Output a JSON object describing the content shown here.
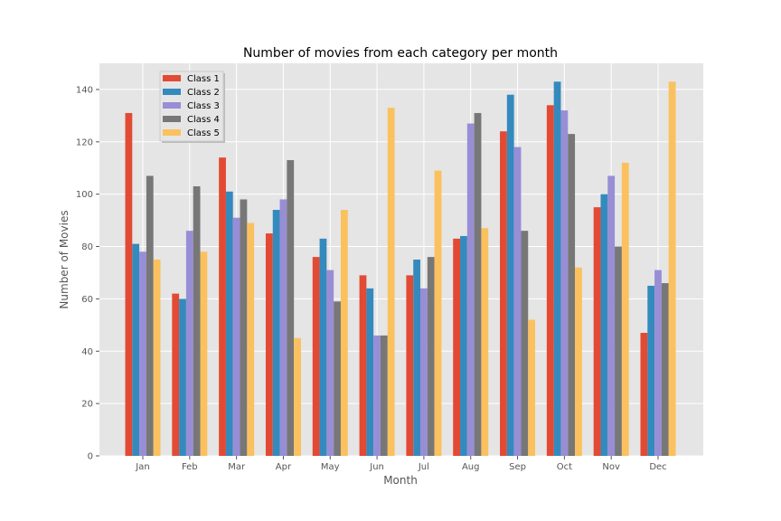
{
  "chart_data": {
    "type": "bar",
    "title": "Number of movies from each category per month",
    "xlabel": "Month",
    "ylabel": "Number of Movies",
    "categories": [
      "Jan",
      "Feb",
      "Mar",
      "Apr",
      "May",
      "Jun",
      "Jul",
      "Aug",
      "Sep",
      "Oct",
      "Nov",
      "Dec"
    ],
    "ylim": [
      0,
      150
    ],
    "yticks": [
      0,
      20,
      40,
      60,
      80,
      100,
      120,
      140
    ],
    "grid": true,
    "legend_position": "top-left",
    "series": [
      {
        "name": "Class 1",
        "color": "#E24A33",
        "values": [
          131,
          62,
          114,
          85,
          76,
          69,
          69,
          83,
          124,
          134,
          95,
          47
        ]
      },
      {
        "name": "Class 2",
        "color": "#348ABD",
        "values": [
          81,
          60,
          101,
          94,
          83,
          64,
          75,
          84,
          138,
          143,
          100,
          65
        ]
      },
      {
        "name": "Class 3",
        "color": "#988ED5",
        "values": [
          78,
          86,
          91,
          98,
          71,
          46,
          64,
          127,
          118,
          132,
          107,
          71
        ]
      },
      {
        "name": "Class 4",
        "color": "#777777",
        "values": [
          107,
          103,
          98,
          113,
          59,
          46,
          76,
          131,
          86,
          123,
          80,
          66
        ]
      },
      {
        "name": "Class 5",
        "color": "#FBC15E",
        "values": [
          75,
          78,
          89,
          45,
          94,
          133,
          109,
          87,
          52,
          72,
          112,
          143
        ]
      }
    ]
  }
}
